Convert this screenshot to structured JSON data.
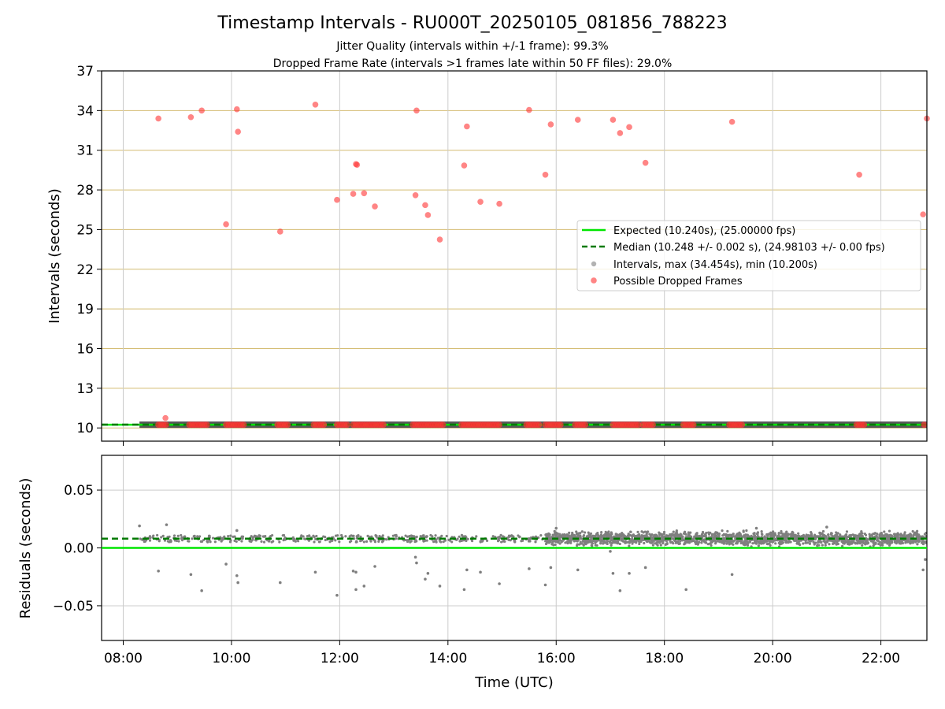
{
  "figure": {
    "title": "Timestamp Intervals - RU000T_20250105_081856_788223",
    "subtitle_1": "Jitter Quality (intervals within +/-1 frame): 99.3%",
    "subtitle_2": "Dropped Frame Rate (intervals >1 frames late within 50 FF files): 29.0%"
  },
  "chart_data": [
    {
      "type": "scatter",
      "xlabel": "",
      "ylabel": "Intervals (seconds)",
      "xlim": [
        7.6,
        22.85
      ],
      "ylim": [
        9.0,
        37.0
      ],
      "y_ticks": [
        10,
        13,
        16,
        19,
        22,
        25,
        28,
        31,
        34,
        37
      ],
      "x_ticks": [
        "08:00",
        "10:00",
        "12:00",
        "14:00",
        "16:00",
        "18:00",
        "20:00",
        "22:00"
      ],
      "x_tick_hours": [
        8,
        10,
        12,
        14,
        16,
        18,
        20,
        22
      ],
      "grid": true,
      "legend_position": "center-right",
      "legend": [
        "Expected (10.240s), (25.00000 fps)",
        "Median (10.248 +/- 0.002 s), (24.98103 +/- 0.00 fps)",
        "Intervals, max (34.454s), min (10.200s)",
        "Possible Dropped Frames"
      ],
      "colors": {
        "expected": "#00e600",
        "median": "#007a00",
        "intervals": "#7f7f7f",
        "dropped": "#ff3333",
        "hgrid": "#d4bc72",
        "vgrid": "#cccccc"
      },
      "expected_y": 10.24,
      "median_y": 10.248,
      "intervals_band": {
        "x_start": 8.3,
        "x_end": 22.85,
        "y": 10.24
      },
      "dropped_high": [
        [
          8.65,
          33.4
        ],
        [
          8.78,
          10.75
        ],
        [
          9.25,
          33.5
        ],
        [
          9.45,
          34.0
        ],
        [
          9.9,
          25.4
        ],
        [
          10.1,
          34.1
        ],
        [
          10.12,
          32.4
        ],
        [
          10.9,
          24.85
        ],
        [
          11.55,
          34.45
        ],
        [
          11.95,
          27.25
        ],
        [
          12.25,
          27.7
        ],
        [
          12.3,
          29.95
        ],
        [
          12.32,
          29.9
        ],
        [
          12.45,
          27.75
        ],
        [
          12.65,
          26.75
        ],
        [
          13.4,
          27.6
        ],
        [
          13.42,
          34.0
        ],
        [
          13.58,
          26.85
        ],
        [
          13.63,
          26.1
        ],
        [
          13.85,
          24.25
        ],
        [
          14.3,
          29.85
        ],
        [
          14.35,
          32.8
        ],
        [
          14.6,
          27.1
        ],
        [
          14.95,
          26.95
        ],
        [
          15.5,
          34.05
        ],
        [
          15.8,
          29.15
        ],
        [
          15.9,
          32.95
        ],
        [
          16.4,
          33.3
        ],
        [
          17.05,
          33.3
        ],
        [
          17.18,
          32.3
        ],
        [
          17.35,
          32.75
        ],
        [
          17.65,
          30.05
        ],
        [
          19.25,
          33.15
        ],
        [
          21.6,
          29.15
        ],
        [
          22.78,
          26.15
        ],
        [
          22.85,
          33.4
        ]
      ],
      "dropped_base_clusters": [
        [
          8.65,
          8.82
        ],
        [
          9.22,
          9.58
        ],
        [
          9.9,
          10.25
        ],
        [
          10.85,
          11.05
        ],
        [
          11.52,
          11.72
        ],
        [
          11.95,
          12.15
        ],
        [
          12.25,
          12.82
        ],
        [
          13.35,
          13.95
        ],
        [
          14.25,
          14.95
        ],
        [
          15.45,
          15.7
        ],
        [
          15.8,
          16.1
        ],
        [
          16.35,
          16.55
        ],
        [
          17.05,
          17.55
        ],
        [
          17.6,
          17.8
        ],
        [
          18.35,
          18.55
        ],
        [
          19.2,
          19.45
        ],
        [
          21.55,
          21.72
        ],
        [
          22.8,
          22.85
        ]
      ]
    },
    {
      "type": "scatter",
      "xlabel": "Time (UTC)",
      "ylabel": "Residuals (seconds)",
      "xlim": [
        7.6,
        22.85
      ],
      "ylim": [
        -0.08,
        0.08
      ],
      "y_ticks": [
        0.05,
        0.0,
        -0.05
      ],
      "y_tick_labels": [
        "0.05",
        "0.00",
        "−0.05"
      ],
      "x_ticks": [
        "08:00",
        "10:00",
        "12:00",
        "14:00",
        "16:00",
        "18:00",
        "20:00",
        "22:00"
      ],
      "x_tick_hours": [
        8,
        10,
        12,
        14,
        16,
        18,
        20,
        22
      ],
      "grid": true,
      "expected_y": 0.0,
      "median_y": 0.008,
      "dense_region": {
        "x_start": 15.8,
        "x_end": 22.85,
        "y_center": 0.008,
        "spread": 0.008
      },
      "sparse_region": {
        "x_start": 8.3,
        "x_end": 15.8,
        "y_center": 0.008,
        "spread": 0.003
      },
      "outliers": [
        [
          8.3,
          0.019
        ],
        [
          8.65,
          -0.02
        ],
        [
          8.8,
          0.02
        ],
        [
          9.25,
          -0.023
        ],
        [
          9.45,
          -0.037
        ],
        [
          9.9,
          -0.014
        ],
        [
          10.1,
          -0.024
        ],
        [
          10.12,
          -0.03
        ],
        [
          10.1,
          0.015
        ],
        [
          10.9,
          -0.03
        ],
        [
          11.55,
          -0.021
        ],
        [
          11.95,
          -0.041
        ],
        [
          12.25,
          -0.02
        ],
        [
          12.3,
          -0.036
        ],
        [
          12.3,
          -0.021
        ],
        [
          12.45,
          -0.033
        ],
        [
          12.65,
          -0.016
        ],
        [
          13.4,
          -0.008
        ],
        [
          13.42,
          -0.013
        ],
        [
          13.58,
          -0.027
        ],
        [
          13.63,
          -0.022
        ],
        [
          13.85,
          -0.033
        ],
        [
          14.3,
          -0.036
        ],
        [
          14.35,
          -0.019
        ],
        [
          14.6,
          -0.021
        ],
        [
          14.95,
          -0.031
        ],
        [
          15.5,
          -0.018
        ],
        [
          15.8,
          -0.032
        ],
        [
          15.9,
          -0.017
        ],
        [
          16.4,
          -0.019
        ],
        [
          17.05,
          -0.022
        ],
        [
          17.18,
          -0.037
        ],
        [
          17.35,
          -0.022
        ],
        [
          17.65,
          -0.017
        ],
        [
          18.4,
          -0.036
        ],
        [
          19.25,
          -0.023
        ],
        [
          22.78,
          -0.019
        ],
        [
          22.82,
          -0.01
        ],
        [
          16.0,
          0.017
        ],
        [
          19.7,
          0.017
        ],
        [
          21.0,
          0.018
        ],
        [
          17.0,
          -0.003
        ]
      ]
    }
  ]
}
